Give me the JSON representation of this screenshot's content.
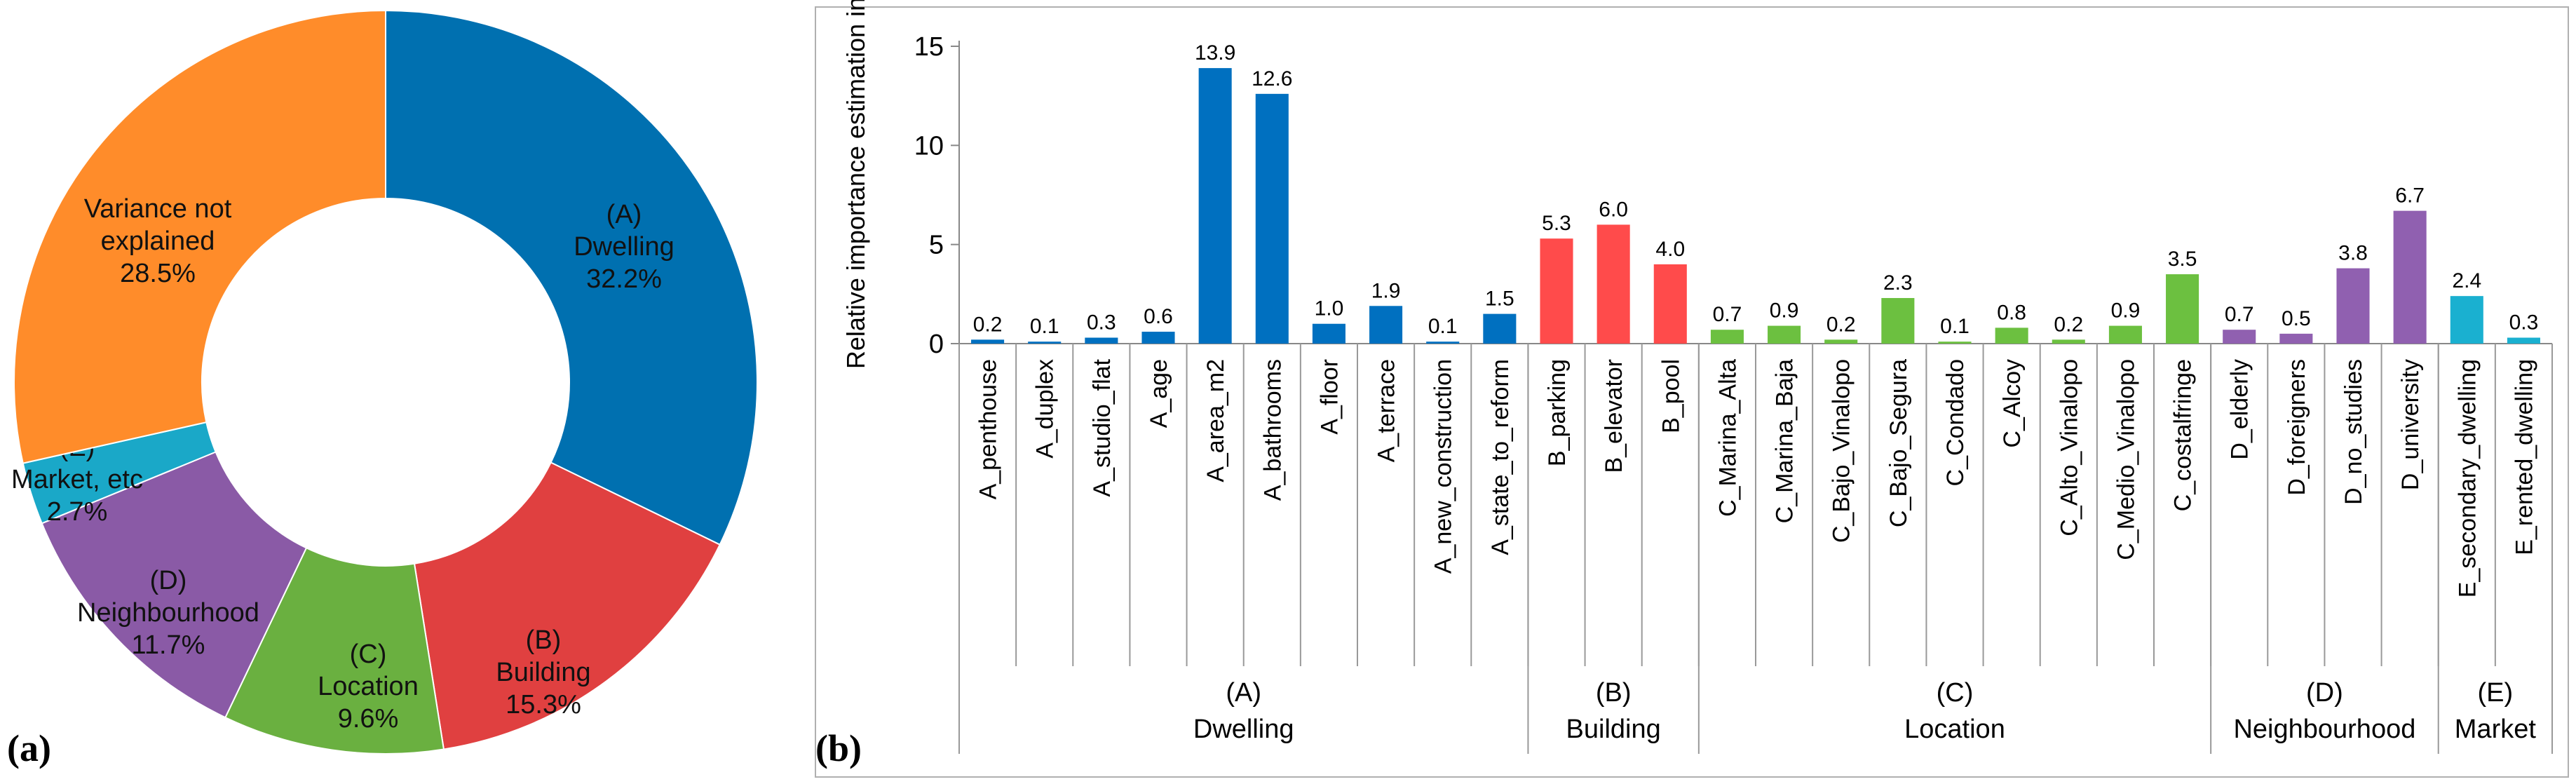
{
  "chart_data": [
    {
      "type": "pie",
      "panel": "(a)",
      "title": "",
      "slices": [
        {
          "letter": "(A)",
          "name": "Dwelling",
          "pct_label": "32.2%",
          "value": 32.2,
          "color": "#0070b0"
        },
        {
          "letter": "(B)",
          "name": "Building",
          "pct_label": "15.3%",
          "value": 15.3,
          "color": "#e04040"
        },
        {
          "letter": "(C)",
          "name": "Location",
          "pct_label": "9.6%",
          "value": 9.6,
          "color": "#6ab040"
        },
        {
          "letter": "(D)",
          "name": "Neighbourhood",
          "pct_label": "11.7%",
          "value": 11.7,
          "color": "#8a5aa6"
        },
        {
          "letter": "(E)",
          "name": "Market, etc",
          "pct_label": "2.7%",
          "value": 2.7,
          "color": "#1aa8c8"
        },
        {
          "letter": "Variance not",
          "name": "explained",
          "pct_label": "28.5%",
          "value": 28.5,
          "color": "#ff8c2a"
        }
      ]
    },
    {
      "type": "bar",
      "panel": "(b)",
      "title": "",
      "xlabel": "",
      "ylabel": "Relative importance estimation in %",
      "ylim": [
        0,
        15
      ],
      "yticks": [
        "0",
        "5",
        "10",
        "15"
      ],
      "categories": [
        "A_penthouse",
        "A_duplex",
        "A_studio_flat",
        "A_age",
        "A_area_m2",
        "A_bathrooms",
        "A_floor",
        "A_terrace",
        "A_new_construction",
        "A_state_to_reform",
        "B_parking",
        "B_elevator",
        "B_pool",
        "C_Marina_Alta",
        "C_Marina_Baja",
        "C_Bajo_Vinalopo",
        "C_Bajo_Segura",
        "C_Condado",
        "C_Alcoy",
        "C_Alto_Vinalopo",
        "C_Medio_Vinalopo",
        "C_costalfringe",
        "D_elderly",
        "D_foreigners",
        "D_no_studies",
        "D_university",
        "E_secondary_dwelling",
        "E_rented_dwelling"
      ],
      "values": [
        0.2,
        0.1,
        0.3,
        0.6,
        13.9,
        12.6,
        1.0,
        1.9,
        0.1,
        1.5,
        5.3,
        6.0,
        4.0,
        0.7,
        0.9,
        0.2,
        2.3,
        0.1,
        0.8,
        0.2,
        0.9,
        3.5,
        0.7,
        0.5,
        3.8,
        6.7,
        2.4,
        0.3
      ],
      "value_labels": [
        "0.2",
        "0.1",
        "0.3",
        "0.6",
        "13.9",
        "12.6",
        "1.0",
        "1.9",
        "0.1",
        "1.5",
        "5.3",
        "6.0",
        "4.0",
        "0.7",
        "0.9",
        "0.2",
        "2.3",
        "0.1",
        "0.8",
        "0.2",
        "0.9",
        "3.5",
        "0.7",
        "0.5",
        "3.8",
        "6.7",
        "2.4",
        "0.3"
      ],
      "groups": [
        {
          "letter": "(A)",
          "name": "Dwelling",
          "count": 10,
          "color": "#0070c0"
        },
        {
          "letter": "(B)",
          "name": "Building",
          "count": 3,
          "color": "#ff4b4b"
        },
        {
          "letter": "(C)",
          "name": "Location",
          "count": 9,
          "color": "#6cc040"
        },
        {
          "letter": "(D)",
          "name": "Neighbourhood",
          "count": 4,
          "color": "#9060b0"
        },
        {
          "letter": "(E)",
          "name": "Market",
          "count": 2,
          "color": "#1ab0d0"
        }
      ]
    }
  ]
}
